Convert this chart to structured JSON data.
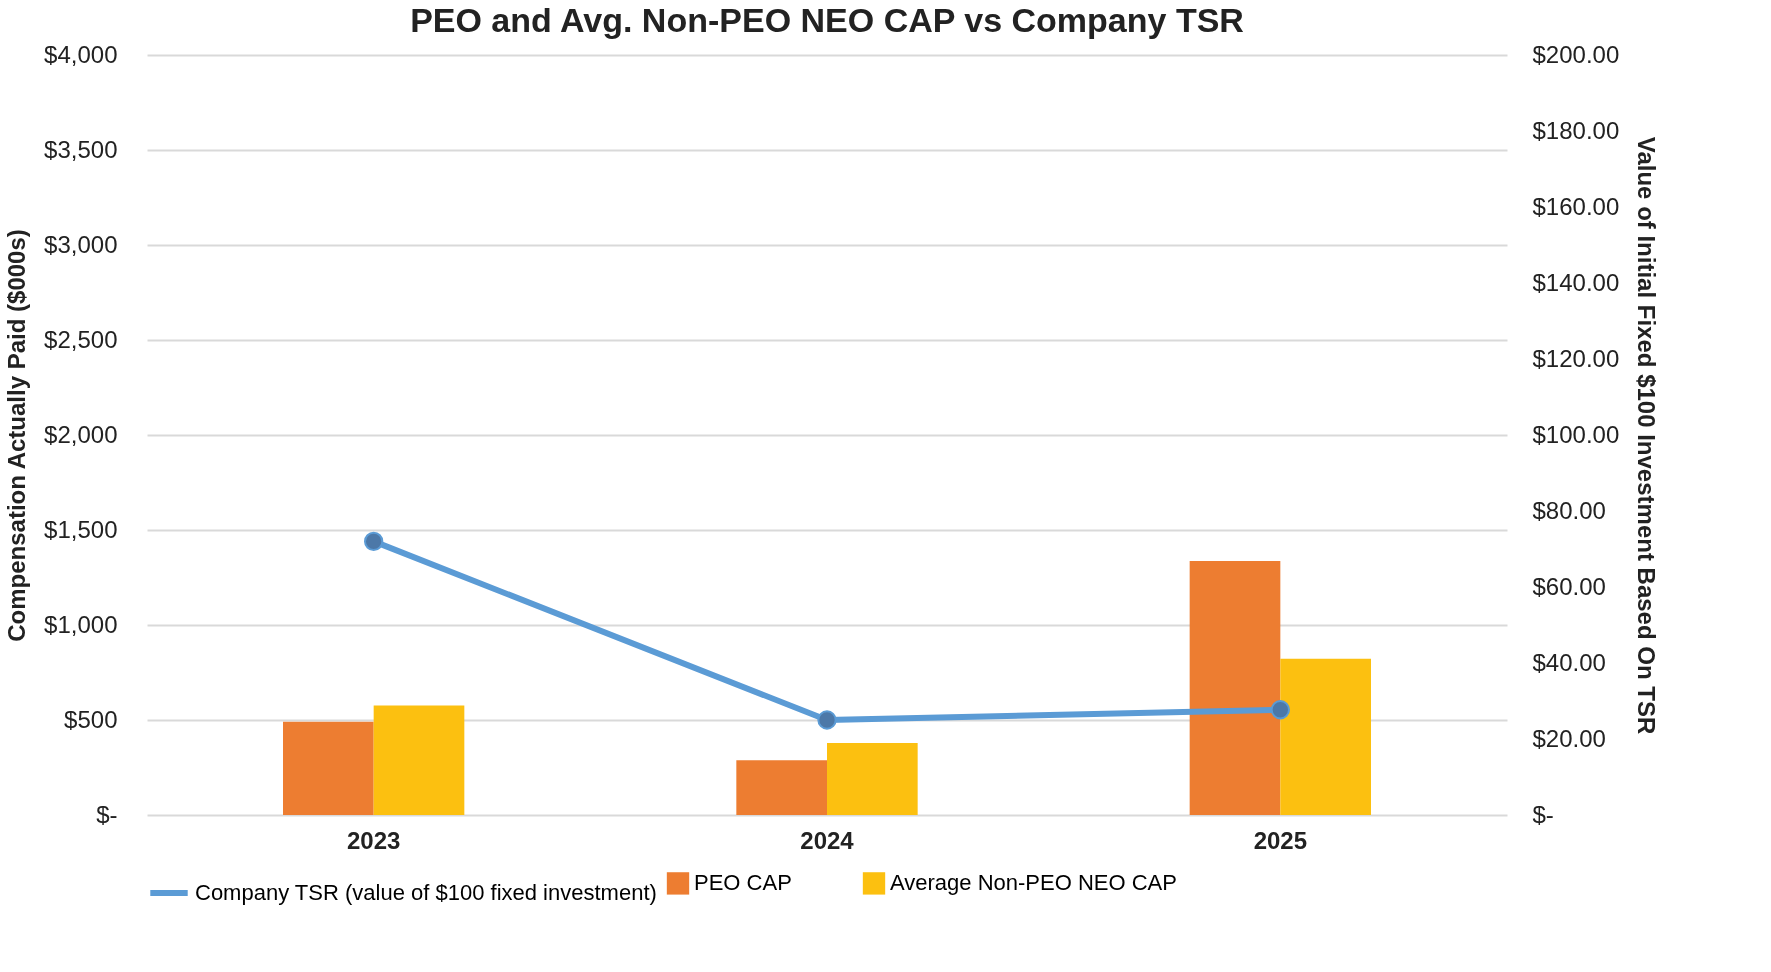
{
  "chart_data": {
    "type": "bar",
    "title": "PEO and Avg. Non-PEO NEO CAP vs Company TSR",
    "categories": [
      "2023",
      "2024",
      "2025"
    ],
    "series": [
      {
        "name": "PEO CAP",
        "color": "#ed7d31",
        "values": [
          491,
          288,
          1337
        ]
      },
      {
        "name": "Average Non-PEO NEO CAP",
        "color": "#fcc010",
        "values": [
          576,
          379,
          823
        ]
      },
      {
        "name": "Company TSR (value of $100 fixed investment)",
        "type": "line",
        "axis": "y2",
        "color": "#5b9bd5",
        "values": [
          72,
          25,
          27.7
        ]
      }
    ],
    "ylabel": "Compensation Actually Paid ($000s)",
    "y2label": "Value of Initial Fixed $100 Investment Based On TSR",
    "ylim": [
      0,
      4000
    ],
    "yticks": [
      {
        "value": 0,
        "label": "$-"
      },
      {
        "value": 500,
        "label": "$500"
      },
      {
        "value": 1000,
        "label": "$1,000"
      },
      {
        "value": 1500,
        "label": "$1,500"
      },
      {
        "value": 2000,
        "label": "$2,000"
      },
      {
        "value": 2500,
        "label": "$2,500"
      },
      {
        "value": 3000,
        "label": "$3,000"
      },
      {
        "value": 3500,
        "label": "$3,500"
      },
      {
        "value": 4000,
        "label": "$4,000"
      }
    ],
    "y2lim": [
      0,
      200
    ],
    "y2ticks": [
      {
        "value": 0,
        "label": "$-"
      },
      {
        "value": 20,
        "label": "$20.00"
      },
      {
        "value": 40,
        "label": "$40.00"
      },
      {
        "value": 60,
        "label": "$60.00"
      },
      {
        "value": 80,
        "label": "$80.00"
      },
      {
        "value": 100,
        "label": "$100.00"
      },
      {
        "value": 120,
        "label": "$120.00"
      },
      {
        "value": 140,
        "label": "$140.00"
      },
      {
        "value": 160,
        "label": "$160.00"
      },
      {
        "value": 180,
        "label": "$180.00"
      },
      {
        "value": 200,
        "label": "$200.00"
      }
    ],
    "grid": "y",
    "legend": "bottom",
    "marker": "circle"
  }
}
